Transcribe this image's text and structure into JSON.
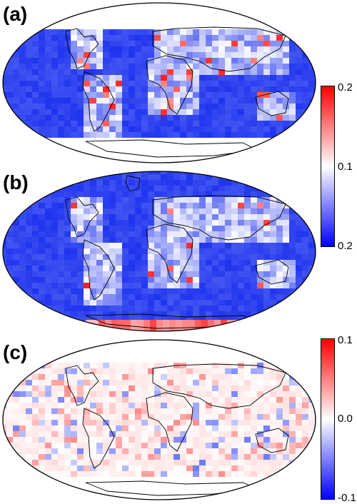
{
  "panels": [
    {
      "label": "(a)",
      "coverage": "60S-60N",
      "scheme": "blue-white-red"
    },
    {
      "label": "(b)",
      "coverage": "global",
      "scheme": "blue-white-red"
    },
    {
      "label": "(c)",
      "coverage": "global",
      "scheme": "difference"
    }
  ],
  "colorbars": [
    {
      "ticks": [
        "0.2",
        "0.1",
        "0.2"
      ],
      "colors": [
        "#ff0000",
        "#ffffff",
        "#0000ff"
      ]
    },
    {
      "ticks": [
        "0.1",
        "0.0",
        "-0.1"
      ],
      "colors": [
        "#ff0000",
        "#ffffff",
        "#0000ff"
      ]
    }
  ],
  "colors": {
    "ocean_low": "#2a3cf0",
    "high": "#ff1a1a",
    "neutral": "#ffffff",
    "coast": "#000000"
  }
}
